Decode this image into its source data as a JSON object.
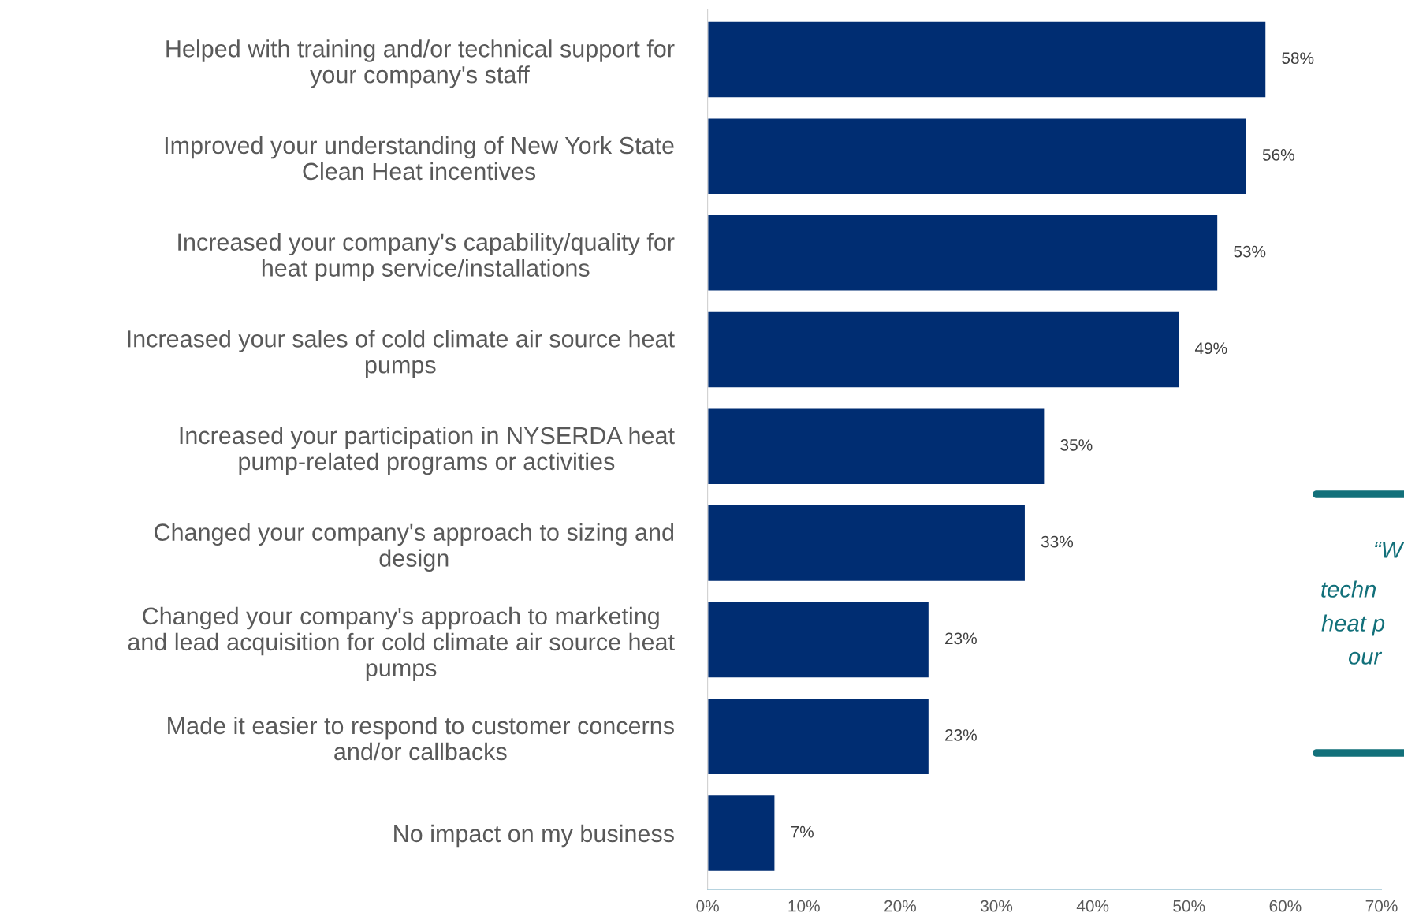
{
  "chart_data": {
    "type": "bar",
    "orientation": "horizontal",
    "categories": [
      "Helped with training and/or technical support for\nyour company's staff",
      "Improved your understanding of New York State\nClean Heat incentives",
      "Increased your company's capability/quality for\nheat pump service/installations",
      "Increased your sales of cold climate air source heat\npumps",
      "Increased your participation in NYSERDA heat\npump-related programs or activities",
      "Changed your company's approach to sizing and\ndesign",
      "Changed your company's approach to marketing\nand lead acquisition for cold climate air source heat\npumps",
      "Made it easier to respond to customer concerns\nand/or callbacks",
      "No impact on my business"
    ],
    "values": [
      58,
      56,
      53,
      49,
      35,
      33,
      23,
      23,
      7
    ],
    "value_labels": [
      "58%",
      "56%",
      "53%",
      "49%",
      "35%",
      "33%",
      "23%",
      "23%",
      "7%"
    ],
    "color": "#002d72",
    "xlim": [
      0,
      70
    ],
    "xticks": [
      {
        "value": 0,
        "label": "0%"
      },
      {
        "value": 10,
        "label": "10%"
      },
      {
        "value": 20,
        "label": "20%"
      },
      {
        "value": 30,
        "label": "30%"
      },
      {
        "value": 40,
        "label": "40%"
      },
      {
        "value": 50,
        "label": "50%"
      },
      {
        "value": 60,
        "label": "60%"
      },
      {
        "value": 70,
        "label": "70%"
      }
    ],
    "grid": false,
    "legend": false,
    "annotations": [
      "“W",
      "techn",
      "heat p",
      "our"
    ]
  }
}
